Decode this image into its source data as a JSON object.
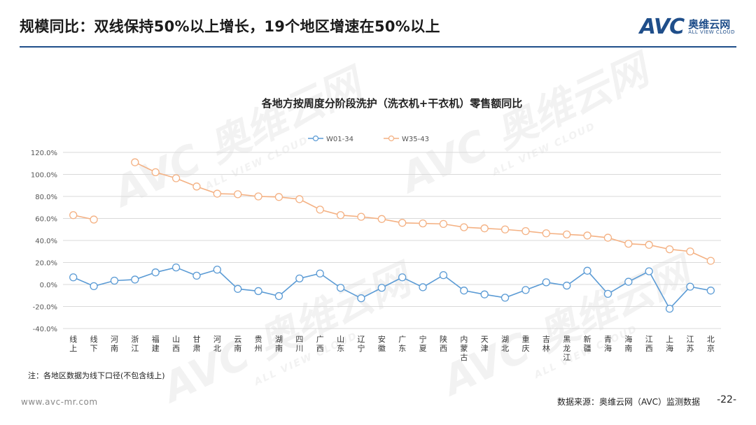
{
  "header": {
    "title": "规模同比：双线保持50%以上增长，19个地区增速在50%以上",
    "logo_mark": "AVC",
    "logo_cn": "奥维云网",
    "logo_en": "ALL VIEW CLOUD"
  },
  "watermark": {
    "mark": "AVC",
    "cn": "奥维云网",
    "en": "ALL VIEW CLOUD"
  },
  "chart_data": {
    "type": "line",
    "title": "各地方按周度分阶段洗护（洗衣机+干衣机）零售额同比",
    "legend_position": "top",
    "grid": true,
    "ylim": [
      -40,
      120
    ],
    "yticks": [
      -40,
      -20,
      0,
      20,
      40,
      60,
      80,
      100,
      120
    ],
    "ytick_labels": [
      "-40.0%",
      "-20.0%",
      "0.0%",
      "20.0%",
      "40.0%",
      "60.0%",
      "80.0%",
      "100.0%",
      "120.0%"
    ],
    "categories": [
      "线上",
      "线下",
      "河南",
      "浙江",
      "福建",
      "山西",
      "甘肃",
      "河北",
      "云南",
      "贵州",
      "湖南",
      "四川",
      "广西",
      "山东",
      "辽宁",
      "安徽",
      "广东",
      "宁夏",
      "陕西",
      "内蒙古",
      "天津",
      "湖北",
      "重庆",
      "吉林",
      "黑龙江",
      "新疆",
      "青海",
      "海南",
      "江西",
      "上海",
      "江苏",
      "北京"
    ],
    "series": [
      {
        "name": "W01-34",
        "color": "#5b9bd5",
        "values": [
          6.5,
          -1.5,
          3.5,
          4.5,
          11,
          15.5,
          8,
          13.5,
          -4,
          -6,
          -10.5,
          5.5,
          10,
          -3,
          -12.5,
          -3,
          6.5,
          -2.5,
          8.5,
          -5.5,
          -9,
          -12,
          -5,
          2,
          -1,
          12.5,
          -8.5,
          2.5,
          12,
          -22,
          -2,
          -5.5
        ]
      },
      {
        "name": "W35-43",
        "color": "#f4b183",
        "values": [
          63,
          59,
          null,
          111,
          102,
          96.5,
          89,
          82.5,
          82,
          80,
          79.5,
          77.5,
          68,
          63,
          61.5,
          59.5,
          56,
          55.5,
          55,
          52,
          51,
          50,
          48.5,
          46.5,
          45.5,
          44.5,
          42.5,
          37,
          36,
          32,
          30,
          21.5
        ]
      }
    ]
  },
  "footnote": "注：各地区数据为线下口径(不包含线上)",
  "footer": {
    "url": "www.avc-mr.com",
    "source": "数据来源：奥维云网（AVC）监测数据",
    "page": "-22-"
  }
}
